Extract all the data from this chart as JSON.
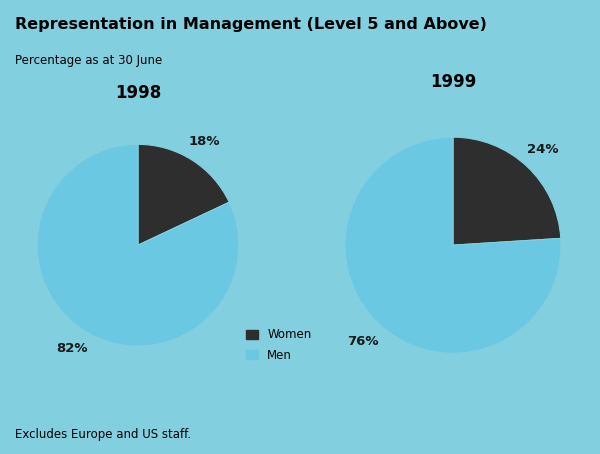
{
  "title": "Representation in Management (Level 5 and Above)",
  "subtitle": "Percentage as at 30 June",
  "footer": "Excludes Europe and US staff.",
  "header_bg_color": "#3ab0cc",
  "chart_bg_color": "#82cfe0",
  "footer_bg_color": "#f0f0f0",
  "years": [
    "1998",
    "1999"
  ],
  "women_pct": [
    18,
    24
  ],
  "men_pct": [
    82,
    76
  ],
  "women_color": "#2e2e2e",
  "men_color": "#6ac8e2",
  "label_color": "#1a1a1a"
}
